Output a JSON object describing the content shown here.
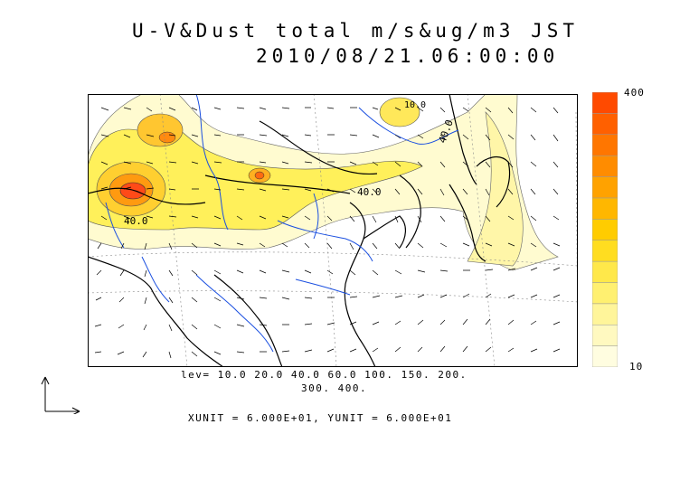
{
  "title": {
    "line1": "U-V&Dust total m/s&ug/m3 JST",
    "line2": "2010/08/21.06:00:00"
  },
  "colorbar": {
    "max_label": "400",
    "min_label": "10",
    "colors": [
      "#fffde0",
      "#fff9c0",
      "#fff59a",
      "#fff070",
      "#ffe84a",
      "#ffdd20",
      "#ffcc00",
      "#ffb700",
      "#ffa200",
      "#ff8c00",
      "#ff7600",
      "#ff6000",
      "#ff4a00"
    ]
  },
  "contour_levels": {
    "line1": "lev= 10.0 20.0 40.0 60.0 100. 150. 200.",
    "line2": "300. 400."
  },
  "map_labels": {
    "label_a": "40.0",
    "label_b": "40.0",
    "label_c": "40.0",
    "label_d": "10.0"
  },
  "units": "XUNIT = 6.000E+01, YUNIT = 6.000E+01",
  "colors": {
    "coastline": "#000000",
    "rivers": "#1a4fe0",
    "dust_light": "#fffbd0",
    "dust_mid": "#ffe640",
    "dust_high": "#ff7a00",
    "dust_peak": "#ff3a10"
  }
}
